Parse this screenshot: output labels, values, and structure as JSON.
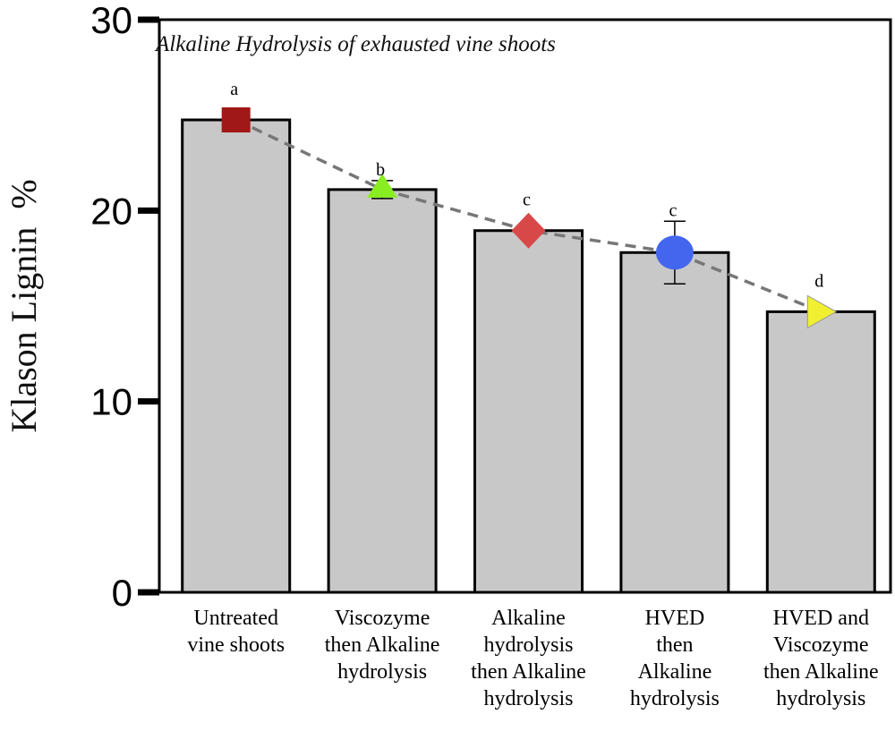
{
  "chart_data": {
    "type": "bar",
    "title": "Alkaline Hydrolysis of exhausted vine shoots",
    "xlabel": "",
    "ylabel": "Klason Lignin  %",
    "ylim": [
      0,
      30
    ],
    "yticks": [
      0,
      10,
      20,
      30
    ],
    "grid": false,
    "categories": [
      [
        "Untreated",
        "vine shoots"
      ],
      [
        "Viscozyme",
        "then Alkaline",
        "hydrolysis"
      ],
      [
        "Alkaline",
        "hydrolysis",
        "then Alkaline",
        "hydrolysis"
      ],
      [
        "HVED",
        "then",
        "Alkaline",
        "hydrolysis"
      ],
      [
        "HVED  and",
        "Viscozyme",
        "then Alkaline",
        "hydrolysis"
      ]
    ],
    "values": [
      24.75,
      21.1,
      18.95,
      17.8,
      14.7
    ],
    "errors": [
      0,
      0.47,
      0,
      1.64,
      0
    ],
    "significance_letters": [
      "a",
      "b",
      "c",
      "c",
      "d"
    ],
    "markers": [
      {
        "shape": "square",
        "color": "#a01818"
      },
      {
        "shape": "triangle-up",
        "color": "#88ee22"
      },
      {
        "shape": "diamond",
        "color": "#d94848"
      },
      {
        "shape": "circle",
        "color": "#4466ee"
      },
      {
        "shape": "triangle-right",
        "color": "#f0f030"
      }
    ],
    "bar_color": "#c8c8c8",
    "trend_line": {
      "style": "dashed",
      "color": "#777777"
    }
  }
}
